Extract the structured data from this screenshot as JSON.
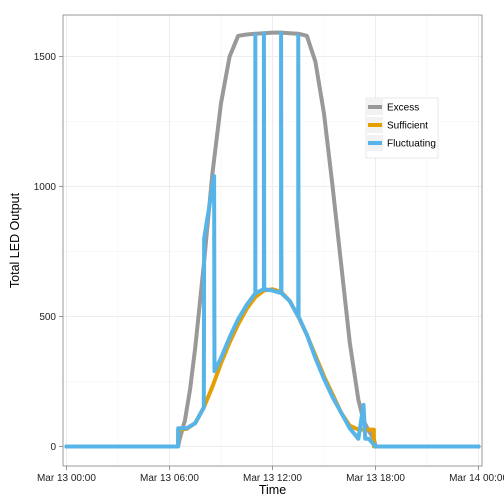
{
  "chart_data": {
    "type": "line",
    "title": "",
    "xlabel": "Time",
    "ylabel": "Total LED Output",
    "x_unit": "hours since Mar 13 00:00",
    "x_ticks": [
      {
        "value": 0,
        "label": "Mar 13 00:00"
      },
      {
        "value": 6,
        "label": "Mar 13 06:00"
      },
      {
        "value": 12,
        "label": "Mar 13 12:00"
      },
      {
        "value": 18,
        "label": "Mar 13 18:00"
      },
      {
        "value": 24,
        "label": "Mar 14 00:00"
      }
    ],
    "y_ticks": [
      0,
      500,
      1000,
      1500
    ],
    "xlim": [
      -0.2,
      24.2
    ],
    "ylim": [
      -75,
      1660
    ],
    "grid": true,
    "legend_position": "right",
    "series": [
      {
        "name": "Excess",
        "color": "#999999",
        "x": [
          0,
          6.5,
          6.6,
          6.9,
          7.2,
          7.5,
          8,
          8.5,
          9,
          9.5,
          10,
          10.5,
          11,
          11.5,
          12,
          12.5,
          13,
          13.5,
          14,
          14.5,
          15,
          15.5,
          16,
          16.5,
          17,
          17.3,
          17.6,
          17.9,
          18,
          24
        ],
        "y": [
          0,
          0,
          30,
          100,
          220,
          380,
          700,
          1050,
          1320,
          1500,
          1580,
          1585,
          1588,
          1590,
          1592,
          1592,
          1590,
          1588,
          1580,
          1480,
          1280,
          1000,
          700,
          400,
          180,
          100,
          60,
          30,
          0,
          0
        ]
      },
      {
        "name": "Sufficient",
        "color": "#E69F00",
        "x": [
          0,
          6.5,
          6.51,
          7,
          7.5,
          8,
          8.5,
          9,
          9.5,
          10,
          10.5,
          11,
          11.5,
          12,
          12.5,
          13,
          13.5,
          14,
          14.5,
          15,
          15.5,
          16,
          16.5,
          17,
          17.3,
          17.5,
          17.9,
          17.91,
          24
        ],
        "y": [
          0,
          0,
          65,
          68,
          90,
          150,
          230,
          320,
          400,
          470,
          530,
          575,
          600,
          605,
          595,
          560,
          500,
          430,
          350,
          270,
          200,
          130,
          80,
          65,
          65,
          65,
          65,
          0,
          0
        ]
      },
      {
        "name": "Fluctuating",
        "color": "#56B4E9",
        "x": [
          0,
          6.5,
          6.51,
          7,
          7.5,
          8,
          8.02,
          8.6,
          8.62,
          9,
          9.5,
          10,
          10.5,
          11,
          11,
          11,
          11.5,
          11.5,
          11.52,
          12,
          12.5,
          12.5,
          12.52,
          13,
          13.5,
          13.5,
          13.52,
          14,
          14.5,
          15,
          15.5,
          16,
          16.5,
          17,
          17.3,
          17.4,
          17.6,
          18,
          24
        ],
        "y": [
          0,
          0,
          70,
          70,
          90,
          150,
          800,
          1040,
          290,
          340,
          420,
          490,
          545,
          590,
          1585,
          590,
          605,
          1590,
          605,
          600,
          590,
          1590,
          590,
          560,
          500,
          1580,
          500,
          430,
          340,
          260,
          190,
          130,
          70,
          30,
          160,
          30,
          30,
          0,
          0
        ]
      }
    ]
  }
}
